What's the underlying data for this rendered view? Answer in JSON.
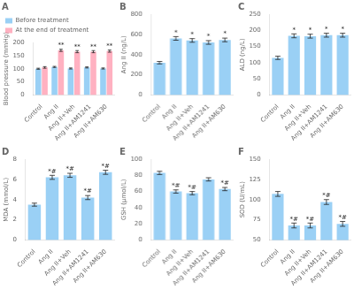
{
  "chart_data": [
    {
      "type": "bar",
      "title": "A",
      "ylabel": "Blood pressure (mmHg)",
      "categories": [
        "Control",
        "Ang II",
        "Ang II+Veh",
        "Ang II+AM1241",
        "Ang II+AM630"
      ],
      "series": [
        {
          "name": "Before treatment",
          "values": [
            100,
            107,
            101,
            105,
            101
          ],
          "errors": [
            2,
            2,
            2,
            2,
            2
          ]
        },
        {
          "name": "At the end of treatment",
          "values": [
            105,
            170,
            165,
            165,
            167
          ],
          "errors": [
            3,
            4,
            4,
            4,
            4
          ],
          "annotations": [
            {
              "category": "Ang II",
              "text": "**"
            },
            {
              "category": "Ang II+Veh",
              "text": "**"
            },
            {
              "category": "Ang II+AM1241",
              "text": "**"
            },
            {
              "category": "Ang II+AM630",
              "text": "**"
            }
          ]
        }
      ],
      "ylim": [
        0,
        200
      ],
      "yticks": [
        0,
        50,
        100,
        150,
        200
      ],
      "grid": false,
      "legend": "top"
    },
    {
      "type": "bar",
      "title": "B",
      "ylabel": "Ang II (ng/L)",
      "categories": [
        "Control",
        "Ang II",
        "Ang II+Veh",
        "Ang II+AM1241",
        "Ang II+AM630"
      ],
      "values": [
        320,
        560,
        540,
        520,
        545
      ],
      "errors": [
        12,
        18,
        18,
        18,
        18
      ],
      "annotations": [
        {
          "category": "Ang II",
          "text": "*"
        },
        {
          "category": "Ang II+Veh",
          "text": "*"
        },
        {
          "category": "Ang II+AM1241",
          "text": "*"
        },
        {
          "category": "Ang II+AM630",
          "text": "*"
        }
      ],
      "ylim": [
        0,
        800
      ],
      "yticks": [
        0,
        200,
        400,
        600,
        800
      ],
      "grid": false
    },
    {
      "type": "bar",
      "title": "C",
      "ylabel": "ALD (ng/L)",
      "categories": [
        "Control",
        "Ang II",
        "Ang II+Veh",
        "Ang II+AM1241",
        "Ang II+AM630"
      ],
      "values": [
        115,
        183,
        182,
        185,
        185
      ],
      "errors": [
        5,
        6,
        6,
        6,
        6
      ],
      "annotations": [
        {
          "category": "Ang II",
          "text": "*"
        },
        {
          "category": "Ang II+Veh",
          "text": "*"
        },
        {
          "category": "Ang II+AM1241",
          "text": "*"
        },
        {
          "category": "Ang II+AM630",
          "text": "*"
        }
      ],
      "ylim": [
        0,
        250
      ],
      "yticks": [
        0,
        50,
        100,
        150,
        200,
        250
      ],
      "grid": false
    },
    {
      "type": "bar",
      "title": "D",
      "ylabel": "MDA (mmol/L)",
      "categories": [
        "Control",
        "Ang II",
        "Ang II+Veh",
        "Ang II+AM1241",
        "Ang II+AM630"
      ],
      "values": [
        3.5,
        6.2,
        6.4,
        4.2,
        6.7
      ],
      "errors": [
        0.15,
        0.2,
        0.2,
        0.2,
        0.2
      ],
      "annotations": [
        {
          "category": "Ang II",
          "text": "*#"
        },
        {
          "category": "Ang II+Veh",
          "text": "*#"
        },
        {
          "category": "Ang II+AM1241",
          "text": "*#"
        },
        {
          "category": "Ang II+AM630",
          "text": "*#"
        }
      ],
      "ylim": [
        0,
        8
      ],
      "yticks": [
        0,
        2,
        4,
        6,
        8
      ],
      "grid": false
    },
    {
      "type": "bar",
      "title": "E",
      "ylabel": "GSH (μmol/L)",
      "categories": [
        "Control",
        "Ang II",
        "Ang II+Veh",
        "Ang II+AM1241",
        "Ang II+AM630"
      ],
      "values": [
        83,
        60,
        58,
        75,
        63
      ],
      "errors": [
        2,
        2,
        2,
        2,
        2
      ],
      "annotations": [
        {
          "category": "Ang II",
          "text": "*#"
        },
        {
          "category": "Ang II+Veh",
          "text": "*#"
        },
        {
          "category": "Ang II+AM630",
          "text": "*#"
        }
      ],
      "ylim": [
        0,
        100
      ],
      "yticks": [
        0,
        20,
        40,
        60,
        80,
        100
      ],
      "grid": false
    },
    {
      "type": "bar",
      "title": "F",
      "ylabel": "SOD (U/mL)",
      "categories": [
        "Control",
        "Ang II",
        "Ang II+Veh",
        "Ang II+AM1241",
        "Ang II+AM630"
      ],
      "values": [
        107,
        68,
        68,
        97,
        70
      ],
      "errors": [
        3,
        3,
        3,
        3,
        3
      ],
      "annotations": [
        {
          "category": "Ang II",
          "text": "*#"
        },
        {
          "category": "Ang II+Veh",
          "text": "*#"
        },
        {
          "category": "Ang II+AM1241",
          "text": "*#"
        },
        {
          "category": "Ang II+AM630",
          "text": "*#"
        }
      ],
      "ylim": [
        50,
        150
      ],
      "yticks": [
        50,
        75,
        100,
        125,
        150
      ],
      "grid": false
    }
  ]
}
